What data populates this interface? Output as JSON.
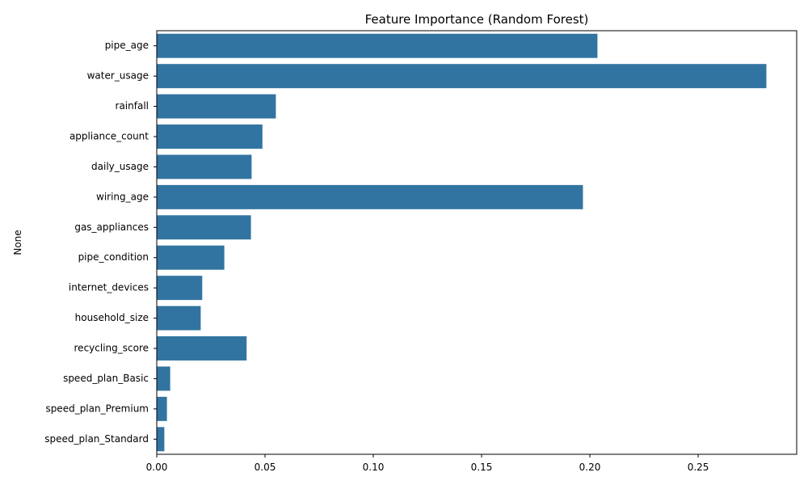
{
  "chart_data": {
    "type": "bar",
    "orientation": "horizontal",
    "title": "Feature Importance (Random Forest)",
    "xlabel": "",
    "ylabel": "None",
    "categories": [
      "pipe_age",
      "water_usage",
      "rainfall",
      "appliance_count",
      "daily_usage",
      "wiring_age",
      "gas_appliances",
      "pipe_condition",
      "internet_devices",
      "household_size",
      "recycling_score",
      "speed_plan_Basic",
      "speed_plan_Premium",
      "speed_plan_Standard"
    ],
    "values": [
      0.2035,
      0.2815,
      0.055,
      0.0488,
      0.0438,
      0.1968,
      0.0435,
      0.0312,
      0.021,
      0.0203,
      0.0415,
      0.0062,
      0.0047,
      0.0035
    ],
    "xlim": [
      0,
      0.2955
    ],
    "xticks": [
      0.0,
      0.05,
      0.1,
      0.15,
      0.2,
      0.25
    ],
    "xtick_labels": [
      "0.00",
      "0.05",
      "0.10",
      "0.15",
      "0.20",
      "0.25"
    ],
    "grid": false,
    "legend": "none",
    "bar_color": "#3274a1"
  }
}
